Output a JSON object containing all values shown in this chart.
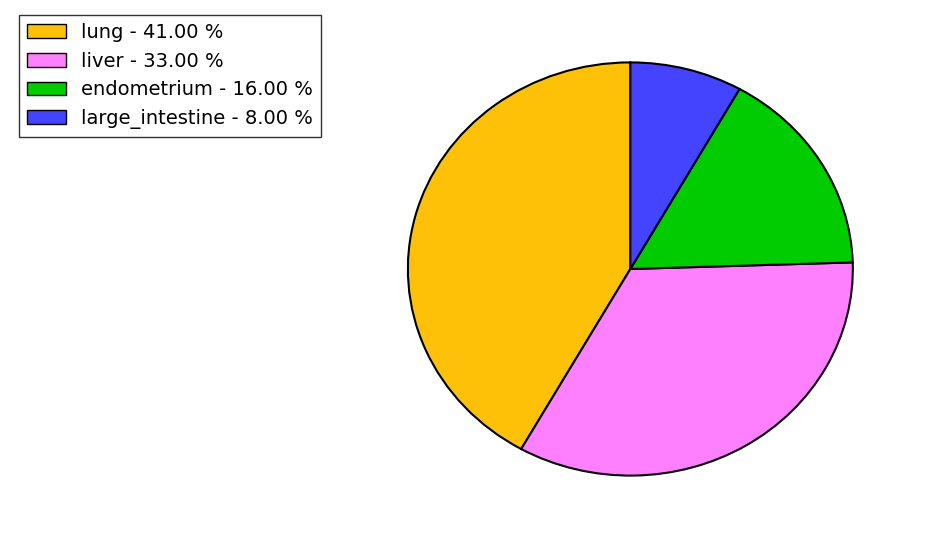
{
  "labels": [
    "lung",
    "liver",
    "endometrium",
    "large_intestine"
  ],
  "values": [
    41.0,
    33.0,
    16.0,
    8.0
  ],
  "colors": [
    "#FFC107",
    "#FF80FF",
    "#00CC00",
    "#4444FF"
  ],
  "legend_labels": [
    "lung - 41.00 %",
    "liver - 33.00 %",
    "endometrium - 16.00 %",
    "large_intestine - 8.00 %"
  ],
  "background_color": "#ffffff",
  "legend_fontsize": 14,
  "figsize": [
    9.27,
    5.38
  ],
  "dpi": 100
}
